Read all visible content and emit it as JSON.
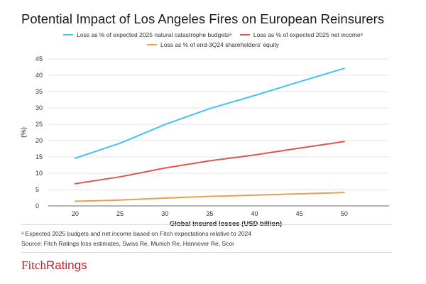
{
  "header": {
    "title": "Potential Impact of Los Angeles Fires on European Reinsurers"
  },
  "footer": {
    "footnote": "ᵃ Expected 2025 budgets and net income based on Fitch expectations relative to 2024",
    "source": "Source: Fitch Ratings loss estimates, Swiss Re, Munich Re, Hannover Re, Scor",
    "logo_text": "FitchRatings"
  },
  "chart_data": {
    "type": "line",
    "title": "Potential Impact of Los Angeles Fires on European Reinsurers",
    "xlabel": "Global insured losses (USD billion)",
    "ylabel": "(%)",
    "x": [
      20,
      25,
      30,
      35,
      40,
      45,
      50
    ],
    "xlim": [
      17,
      55
    ],
    "ylim": [
      0,
      45
    ],
    "yticks": [
      0,
      5,
      10,
      15,
      20,
      25,
      30,
      35,
      40,
      45
    ],
    "grid": true,
    "legend_position": "top-center",
    "series": [
      {
        "name": "Loss as % of expected 2025 natural catastrophe budgetsᵃ",
        "color": "#3ec6f0",
        "values": [
          14.6,
          19.2,
          24.9,
          29.8,
          33.8,
          38.0,
          42.1
        ]
      },
      {
        "name": "Loss as % of expected 2025 net incomeᵃ",
        "color": "#e0564f",
        "values": [
          6.8,
          8.9,
          11.6,
          13.8,
          15.6,
          17.7,
          19.7
        ]
      },
      {
        "name": "Loss as % of end-3Q24 shareholders' equity",
        "color": "#e9a04a",
        "values": [
          1.4,
          1.8,
          2.4,
          2.9,
          3.3,
          3.7,
          4.1
        ]
      }
    ]
  }
}
